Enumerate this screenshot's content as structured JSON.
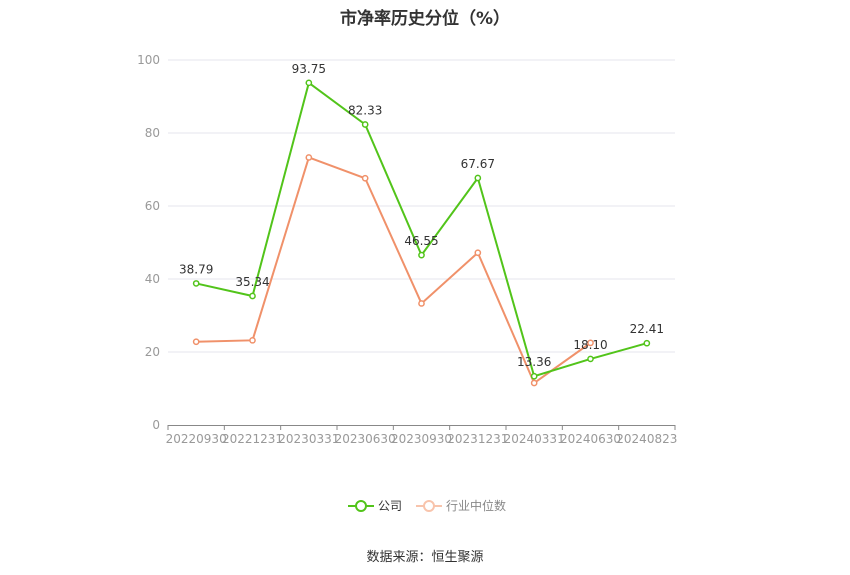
{
  "chart_data": {
    "type": "line",
    "title": "市净率历史分位（%）",
    "categories": [
      "20220930",
      "20221231",
      "20230331",
      "20230630",
      "20230930",
      "20231231",
      "20240331",
      "20240630",
      "20240823"
    ],
    "series": [
      {
        "name": "公司",
        "color": "#52c41a",
        "values": [
          38.79,
          35.34,
          93.75,
          82.33,
          46.55,
          67.67,
          13.36,
          18.1,
          22.41
        ],
        "labels": [
          "38.79",
          "35.34",
          "93.75",
          "82.33",
          "46.55",
          "67.67",
          "13.36",
          "18.10",
          "22.41"
        ]
      },
      {
        "name": "行业中位数",
        "color": "#f0916a",
        "values": [
          22.8,
          23.2,
          73.3,
          67.6,
          33.3,
          47.2,
          11.5,
          22.5,
          null
        ]
      }
    ],
    "yticks": [
      0,
      20,
      40,
      60,
      80,
      100
    ],
    "ylim": [
      0,
      100
    ],
    "grid": true,
    "legend": "bottom-center"
  },
  "source": "数据来源：恒生聚源"
}
